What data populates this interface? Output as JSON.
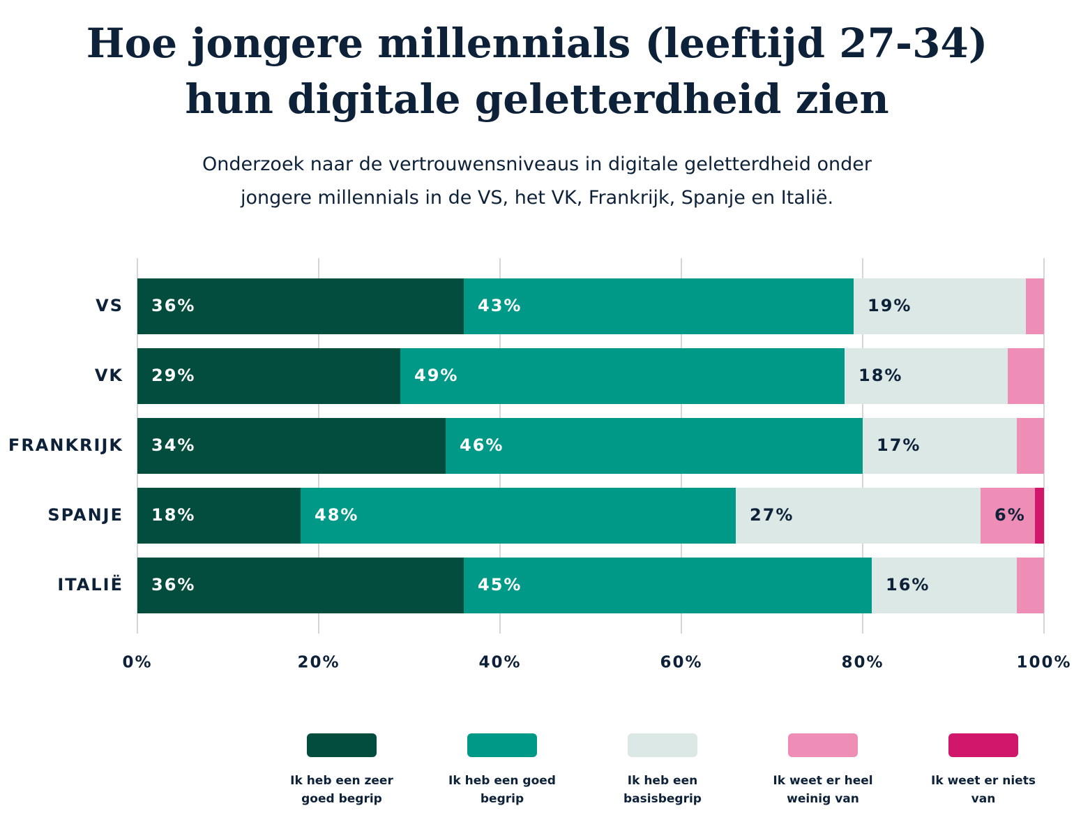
{
  "chart_data": {
    "type": "stacked_bar_horizontal",
    "title": "Hoe jongere millennials (leeftijd 27-34) hun digitale geletterdheid zien",
    "subtitle": "Onderzoek naar de vertrouwensniveaus in digitale geletterdheid onder jongere millennials in de VS, het VK, Frankrijk, Spanje en Italië.",
    "categories": [
      "VS",
      "VK",
      "FRANKRIJK",
      "SPANJE",
      "ITALIË"
    ],
    "series": [
      {
        "name": "Ik heb een zeer goed begrip",
        "color": "#034d3f",
        "values": [
          36,
          29,
          34,
          18,
          36
        ],
        "value_labels": [
          "36%",
          "29%",
          "34%",
          "18%",
          "36%"
        ]
      },
      {
        "name": "Ik heb een goed begrip",
        "color": "#009886",
        "values": [
          43,
          49,
          46,
          48,
          45
        ],
        "value_labels": [
          "43%",
          "49%",
          "46%",
          "48%",
          "45%"
        ]
      },
      {
        "name": "Ik heb een basisbegrip",
        "color": "#dce8e6",
        "values": [
          19,
          18,
          17,
          27,
          16
        ],
        "value_labels": [
          "19%",
          "18%",
          "17%",
          "27%",
          "16%"
        ]
      },
      {
        "name": "Ik weet er heel weinig van",
        "color": "#ee8db6",
        "values": [
          2,
          4,
          3,
          6,
          3
        ],
        "value_labels": [
          null,
          null,
          null,
          "6%",
          null
        ]
      },
      {
        "name": "Ik weet er niets van",
        "color": "#d0176c",
        "values": [
          0,
          0,
          0,
          1,
          0
        ],
        "value_labels": [
          null,
          null,
          null,
          null,
          null
        ]
      }
    ],
    "xlim": [
      0,
      100
    ],
    "xticks": [
      {
        "value": 0,
        "label": "0%"
      },
      {
        "value": 20,
        "label": "20%"
      },
      {
        "value": 40,
        "label": "40%"
      },
      {
        "value": 60,
        "label": "60%"
      },
      {
        "value": 80,
        "label": "80%"
      },
      {
        "value": 100,
        "label": "100%"
      }
    ],
    "grid": true
  }
}
